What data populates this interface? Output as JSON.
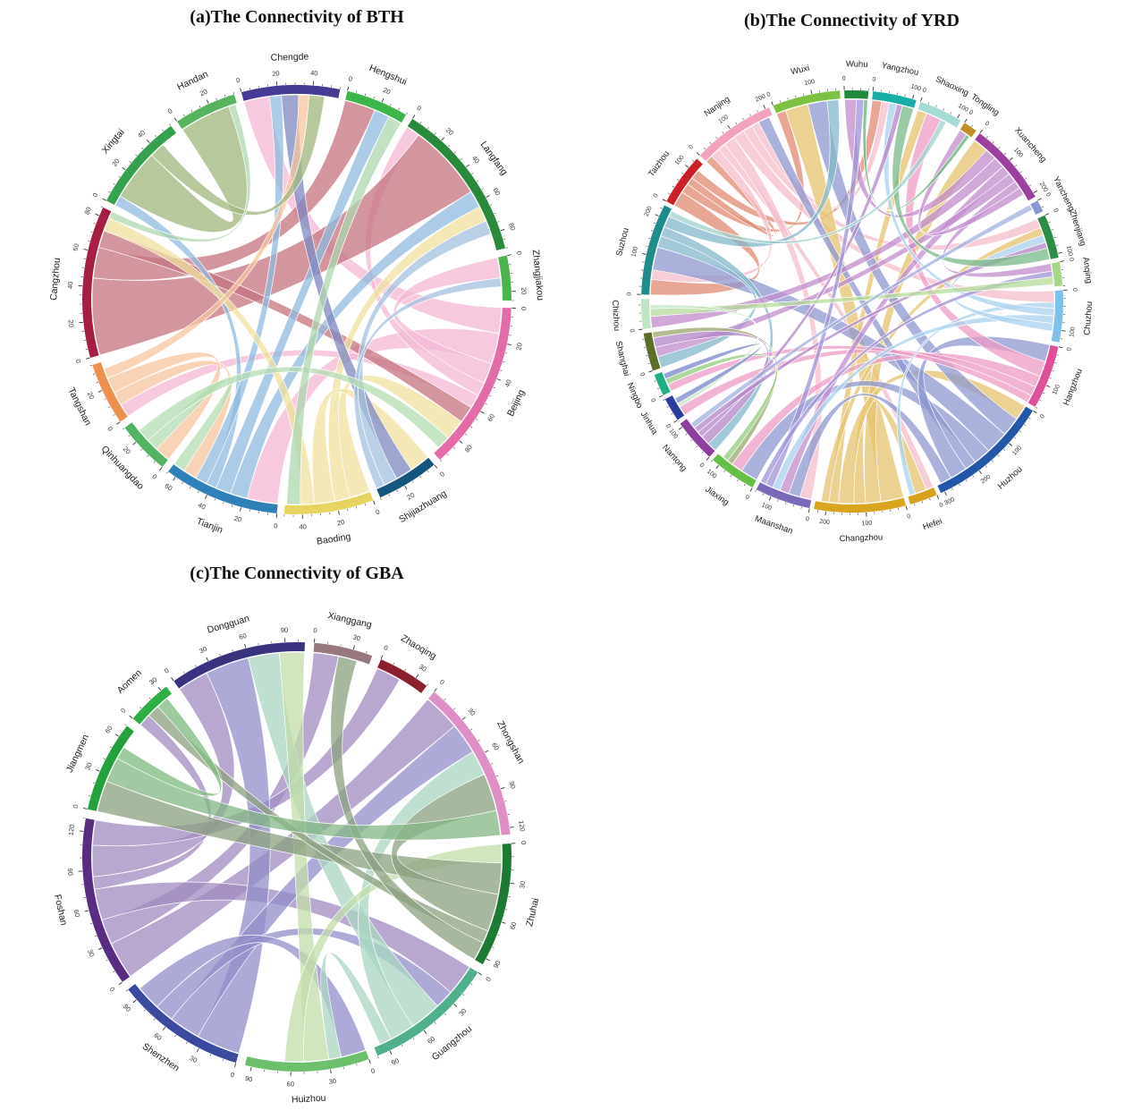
{
  "page": {
    "background": "#ffffff"
  },
  "chart_data": [
    {
      "type": "chord",
      "id": "bth",
      "title": "(a)The Connectivity of BTH",
      "region": "BTH",
      "axis": {
        "tick_major": 20,
        "tick_minor": 5
      },
      "sectors": [
        {
          "name": "Chengde",
          "total": 55,
          "color": "#453a94"
        },
        {
          "name": "Hengshui",
          "total": 35,
          "color": "#3cb54a"
        },
        {
          "name": "Langfang",
          "total": 90,
          "color": "#2a8a3c"
        },
        {
          "name": "Zhangjiakou",
          "total": 25,
          "color": "#49b54f"
        },
        {
          "name": "Beijing",
          "total": 95,
          "color": "#e26ba8"
        },
        {
          "name": "Shijiazhuang",
          "total": 35,
          "color": "#15567e"
        },
        {
          "name": "Baoding",
          "total": 50,
          "color": "#e7d35f"
        },
        {
          "name": "Tianjin",
          "total": 65,
          "color": "#2f7fb9"
        },
        {
          "name": "Qinhuangdao",
          "total": 30,
          "color": "#52b463"
        },
        {
          "name": "Tangshan",
          "total": 35,
          "color": "#ee8f4e"
        },
        {
          "name": "Cangzhou",
          "total": 85,
          "color": "#a51e44"
        },
        {
          "name": "Xingtai",
          "total": 55,
          "color": "#35a04e"
        },
        {
          "name": "Handan",
          "total": 35,
          "color": "#57b35e"
        }
      ],
      "chords": [
        {
          "from": "Beijing",
          "to": "Chengde",
          "value": 15,
          "color": "#f3b7d3"
        },
        {
          "from": "Beijing",
          "to": "Tianjin",
          "value": 18,
          "color": "#f3b7d3"
        },
        {
          "from": "Beijing",
          "to": "Zhangjiakou",
          "value": 12,
          "color": "#f3b7d3"
        },
        {
          "from": "Beijing",
          "to": "Langfang",
          "value": 8,
          "color": "#f3b7d3"
        },
        {
          "from": "Beijing",
          "to": "Tangshan",
          "value": 8,
          "color": "#f3b7d3"
        },
        {
          "from": "Cangzhou",
          "to": "Langfang",
          "value": 45,
          "color": "#c4737f"
        },
        {
          "from": "Cangzhou",
          "to": "Hengshui",
          "value": 18,
          "color": "#c4737f"
        },
        {
          "from": "Cangzhou",
          "to": "Beijing",
          "value": 10,
          "color": "#c4737f"
        },
        {
          "from": "Tianjin",
          "to": "Langfang",
          "value": 10,
          "color": "#8fb9de"
        },
        {
          "from": "Tianjin",
          "to": "Hengshui",
          "value": 9,
          "color": "#8fb9de"
        },
        {
          "from": "Tianjin",
          "to": "Xingtai",
          "value": 6,
          "color": "#8fb9de"
        },
        {
          "from": "Tianjin",
          "to": "Chengde",
          "value": 7,
          "color": "#8fb9de"
        },
        {
          "from": "Baoding",
          "to": "Beijing",
          "value": 12,
          "color": "#efe09e"
        },
        {
          "from": "Baoding",
          "to": "Langfang",
          "value": 9,
          "color": "#efe09e"
        },
        {
          "from": "Baoding",
          "to": "Shijiazhuang",
          "value": 12,
          "color": "#efe09e"
        },
        {
          "from": "Baoding",
          "to": "Cangzhou",
          "value": 8,
          "color": "#efe09e"
        },
        {
          "from": "Shijiazhuang",
          "to": "Chengde",
          "value": 10,
          "color": "#7e88c0"
        },
        {
          "from": "Shijiazhuang",
          "to": "Langfang",
          "value": 8,
          "color": "#a3c0de"
        },
        {
          "from": "Shijiazhuang",
          "to": "Zhangjiakou",
          "value": 5,
          "color": "#a3c0de"
        },
        {
          "from": "Tangshan",
          "to": "Tianjin",
          "value": 8,
          "color": "#f6c49c"
        },
        {
          "from": "Tangshan",
          "to": "Qinhuangdao",
          "value": 9,
          "color": "#f6c49c"
        },
        {
          "from": "Tangshan",
          "to": "Chengde",
          "value": 6,
          "color": "#f6c49c"
        },
        {
          "from": "Qinhuangdao",
          "to": "Tianjin",
          "value": 7,
          "color": "#b2dcb2"
        },
        {
          "from": "Qinhuangdao",
          "to": "Beijing",
          "value": 8,
          "color": "#b2dcb2"
        },
        {
          "from": "Xingtai",
          "to": "Handan",
          "value": 30,
          "color": "#a0b57c"
        },
        {
          "from": "Xingtai",
          "to": "Chengde",
          "value": 9,
          "color": "#a0b57c"
        },
        {
          "from": "Handan",
          "to": "Cangzhou",
          "value": 4,
          "color": "#aed6ae"
        },
        {
          "from": "Hengshui",
          "to": "Baoding",
          "value": 8,
          "color": "#aed6ae"
        }
      ]
    },
    {
      "type": "chord",
      "id": "yrd",
      "title": "(b)The Connectivity of YRD",
      "region": "YRD",
      "axis": {
        "tick_major": 100,
        "tick_minor": 20
      },
      "sectors": [
        {
          "name": "Wuxi",
          "total": 170,
          "color": "#7dc142"
        },
        {
          "name": "Wuhu",
          "total": 60,
          "color": "#208b3d"
        },
        {
          "name": "Yangzhou",
          "total": 110,
          "color": "#16aea6"
        },
        {
          "name": "Shaoxing",
          "total": 110,
          "color": "#a5dbd4"
        },
        {
          "name": "Tongling",
          "total": 35,
          "color": "#bf8f27"
        },
        {
          "name": "Xuancheng",
          "total": 210,
          "color": "#9c3f9f"
        },
        {
          "name": "Yancheng",
          "total": 30,
          "color": "#8896d2"
        },
        {
          "name": "Zhenjiang",
          "total": 110,
          "color": "#2d8c45"
        },
        {
          "name": "Anqing",
          "total": 60,
          "color": "#a6d788"
        },
        {
          "name": "Chuzhou",
          "total": 130,
          "color": "#7fc0e8"
        },
        {
          "name": "Hangzhou",
          "total": 160,
          "color": "#e04f9a"
        },
        {
          "name": "Huzhou",
          "total": 310,
          "color": "#2256a8"
        },
        {
          "name": "Hefei",
          "total": 70,
          "color": "#d6a11d"
        },
        {
          "name": "Changzhou",
          "total": 230,
          "color": "#d9a51f"
        },
        {
          "name": "Maanshan",
          "total": 140,
          "color": "#7a68b8"
        },
        {
          "name": "Jiaxing",
          "total": 120,
          "color": "#67bf4a"
        },
        {
          "name": "Nantong",
          "total": 110,
          "color": "#8d3f9d"
        },
        {
          "name": "Jinhua",
          "total": 60,
          "color": "#2b3d9b"
        },
        {
          "name": "Ningbo",
          "total": 55,
          "color": "#1fae85"
        },
        {
          "name": "Shanghai",
          "total": 95,
          "color": "#5c6e29"
        },
        {
          "name": "Chizhou",
          "total": 75,
          "color": "#bfe5c4"
        },
        {
          "name": "Suzhou",
          "total": 230,
          "color": "#1f8b8b"
        },
        {
          "name": "Taizhou",
          "total": 130,
          "color": "#cc2026"
        },
        {
          "name": "Nanjing",
          "total": 210,
          "color": "#f2a3bb"
        }
      ],
      "chords": [
        {
          "from": "Taizhou",
          "to": "Suzhou",
          "value": 40,
          "color": "#e08a70"
        },
        {
          "from": "Taizhou",
          "to": "Wuxi",
          "value": 25,
          "color": "#e08a70"
        },
        {
          "from": "Taizhou",
          "to": "Nanjing",
          "value": 20,
          "color": "#e08a70"
        },
        {
          "from": "Taizhou",
          "to": "Yangzhou",
          "value": 25,
          "color": "#e08a70"
        },
        {
          "from": "Nanjing",
          "to": "Suzhou",
          "value": 25,
          "color": "#f4bccb"
        },
        {
          "from": "Nanjing",
          "to": "Hefei",
          "value": 20,
          "color": "#f4bccb"
        },
        {
          "from": "Nanjing",
          "to": "Maanshan",
          "value": 30,
          "color": "#f4bccb"
        },
        {
          "from": "Nanjing",
          "to": "Chuzhou",
          "value": 30,
          "color": "#f4bccb"
        },
        {
          "from": "Nanjing",
          "to": "Zhenjiang",
          "value": 25,
          "color": "#f4bccb"
        },
        {
          "from": "Nanjing",
          "to": "Yangzhou",
          "value": 20,
          "color": "#f4bccb"
        },
        {
          "from": "Changzhou",
          "to": "Wuxi",
          "value": 60,
          "color": "#e6c36e"
        },
        {
          "from": "Changzhou",
          "to": "Xuancheng",
          "value": 40,
          "color": "#e6c36e"
        },
        {
          "from": "Changzhou",
          "to": "Hefei",
          "value": 30,
          "color": "#e6c36e"
        },
        {
          "from": "Changzhou",
          "to": "Huzhou",
          "value": 40,
          "color": "#e6c36e"
        },
        {
          "from": "Changzhou",
          "to": "Shaoxing",
          "value": 25,
          "color": "#e6c36e"
        },
        {
          "from": "Changzhou",
          "to": "Zhenjiang",
          "value": 20,
          "color": "#e6c36e"
        },
        {
          "from": "Huzhou",
          "to": "Wuxi",
          "value": 50,
          "color": "#8d97cf"
        },
        {
          "from": "Huzhou",
          "to": "Suzhou",
          "value": 60,
          "color": "#8d97cf"
        },
        {
          "from": "Huzhou",
          "to": "Jiaxing",
          "value": 45,
          "color": "#8d97cf"
        },
        {
          "from": "Huzhou",
          "to": "Nanjing",
          "value": 30,
          "color": "#8d97cf"
        },
        {
          "from": "Huzhou",
          "to": "Hangzhou",
          "value": 45,
          "color": "#8d97cf"
        },
        {
          "from": "Huzhou",
          "to": "Maanshan",
          "value": 30,
          "color": "#8d97cf"
        },
        {
          "from": "Suzhou",
          "to": "Shanghai",
          "value": 30,
          "color": "#82b7c9"
        },
        {
          "from": "Suzhou",
          "to": "Nantong",
          "value": 25,
          "color": "#82b7c9"
        },
        {
          "from": "Suzhou",
          "to": "Wuxi",
          "value": 30,
          "color": "#82b7c9"
        },
        {
          "from": "Hangzhou",
          "to": "Shaoxing",
          "value": 40,
          "color": "#ec9cc4"
        },
        {
          "from": "Hangzhou",
          "to": "Jiaxing",
          "value": 30,
          "color": "#ec9cc4"
        },
        {
          "from": "Hangzhou",
          "to": "Jinhua",
          "value": 25,
          "color": "#ec9cc4"
        },
        {
          "from": "Hangzhou",
          "to": "Ningbo",
          "value": 20,
          "color": "#ec9cc4"
        },
        {
          "from": "Xuancheng",
          "to": "Wuhu",
          "value": 30,
          "color": "#c08ccc"
        },
        {
          "from": "Xuancheng",
          "to": "Chizhou",
          "value": 30,
          "color": "#c08ccc"
        },
        {
          "from": "Xuancheng",
          "to": "Maanshan",
          "value": 25,
          "color": "#c08ccc"
        },
        {
          "from": "Xuancheng",
          "to": "Shanghai",
          "value": 25,
          "color": "#c08ccc"
        },
        {
          "from": "Xuancheng",
          "to": "Anqing",
          "value": 20,
          "color": "#c08ccc"
        },
        {
          "from": "Xuancheng",
          "to": "Tongling",
          "value": 20,
          "color": "#c08ccc"
        },
        {
          "from": "Chuzhou",
          "to": "Hefei",
          "value": 15,
          "color": "#a9d2ee"
        },
        {
          "from": "Chuzhou",
          "to": "Yangzhou",
          "value": 20,
          "color": "#a9d2ee"
        },
        {
          "from": "Chuzhou",
          "to": "Maanshan",
          "value": 20,
          "color": "#a9d2ee"
        },
        {
          "from": "Chuzhou",
          "to": "Zhenjiang",
          "value": 20,
          "color": "#a9d2ee"
        },
        {
          "from": "Nantong",
          "to": "Shanghai",
          "value": 25,
          "color": "#b184c7"
        },
        {
          "from": "Nantong",
          "to": "Yangzhou",
          "value": 15,
          "color": "#b184c7"
        },
        {
          "from": "Nantong",
          "to": "Zhenjiang",
          "value": 15,
          "color": "#b184c7"
        },
        {
          "from": "Shanghai",
          "to": "Jiaxing",
          "value": 15,
          "color": "#99a56b"
        },
        {
          "from": "Jiaxing",
          "to": "Ningbo",
          "value": 15,
          "color": "#90cc7a"
        },
        {
          "from": "Maanshan",
          "to": "Wuhu",
          "value": 20,
          "color": "#9e93d6"
        },
        {
          "from": "Maanshan",
          "to": "Anqing",
          "value": 15,
          "color": "#9e93d6"
        },
        {
          "from": "Wuhu",
          "to": "Tongling",
          "value": 10,
          "color": "#63b377"
        },
        {
          "from": "Anqing",
          "to": "Chizhou",
          "value": 20,
          "color": "#b4dc9a"
        },
        {
          "from": "Chizhou",
          "to": "Jinhua",
          "value": 10,
          "color": "#c4e4c0"
        },
        {
          "from": "Jinhua",
          "to": "Ningbo",
          "value": 15,
          "color": "#7787cc"
        },
        {
          "from": "Zhenjiang",
          "to": "Yangzhou",
          "value": 30,
          "color": "#7ab88a"
        },
        {
          "from": "Shaoxing",
          "to": "Suzhou",
          "value": 15,
          "color": "#9fd2cc"
        },
        {
          "from": "Yancheng",
          "to": "Nantong",
          "value": 15,
          "color": "#9fb0de"
        }
      ]
    },
    {
      "type": "chord",
      "id": "gba",
      "title": "(c)The Connectivity of GBA",
      "region": "GBA",
      "axis": {
        "tick_major": 30,
        "tick_minor": 10
      },
      "sectors": [
        {
          "name": "Dongguan",
          "total": 105,
          "color": "#39337f"
        },
        {
          "name": "Xianggang",
          "total": 45,
          "color": "#97787f"
        },
        {
          "name": "Zhaoqing",
          "total": 40,
          "color": "#8c1f2e"
        },
        {
          "name": "Zhongshan",
          "total": 125,
          "color": "#de8fc5"
        },
        {
          "name": "Zhuhai",
          "total": 95,
          "color": "#1e7a33"
        },
        {
          "name": "Guangzhou",
          "total": 100,
          "color": "#4fb08b"
        },
        {
          "name": "Huizhou",
          "total": 95,
          "color": "#6cbf6b"
        },
        {
          "name": "Shenzhen",
          "total": 100,
          "color": "#3a4a9f"
        },
        {
          "name": "Foshan",
          "total": 130,
          "color": "#582c80"
        },
        {
          "name": "Jiangmen",
          "total": 70,
          "color": "#23a13b"
        },
        {
          "name": "Aomen",
          "total": 35,
          "color": "#2fae45"
        }
      ],
      "chords": [
        {
          "from": "Foshan",
          "to": "Zhongshan",
          "value": 30,
          "color": "#a08bbf"
        },
        {
          "from": "Foshan",
          "to": "Xianggang",
          "value": 20,
          "color": "#a08bbf"
        },
        {
          "from": "Foshan",
          "to": "Guangzhou",
          "value": 25,
          "color": "#a08bbf"
        },
        {
          "from": "Foshan",
          "to": "Aomen",
          "value": 10,
          "color": "#a08bbf"
        },
        {
          "from": "Foshan",
          "to": "Dongguan",
          "value": 25,
          "color": "#a08bbf"
        },
        {
          "from": "Foshan",
          "to": "Zhaoqing",
          "value": 20,
          "color": "#a08bbf"
        },
        {
          "from": "Shenzhen",
          "to": "Dongguan",
          "value": 35,
          "color": "#918dca"
        },
        {
          "from": "Shenzhen",
          "to": "Zhongshan",
          "value": 25,
          "color": "#918dca"
        },
        {
          "from": "Shenzhen",
          "to": "Guangzhou",
          "value": 15,
          "color": "#918dca"
        },
        {
          "from": "Shenzhen",
          "to": "Huizhou",
          "value": 20,
          "color": "#918dca"
        },
        {
          "from": "Guangzhou",
          "to": "Dongguan",
          "value": 25,
          "color": "#a9d6c1"
        },
        {
          "from": "Guangzhou",
          "to": "Zhongshan",
          "value": 20,
          "color": "#a9d6c1"
        },
        {
          "from": "Guangzhou",
          "to": "Huizhou",
          "value": 10,
          "color": "#a9d6c1"
        },
        {
          "from": "Huizhou",
          "to": "Dongguan",
          "value": 20,
          "color": "#c1dcaa"
        },
        {
          "from": "Huizhou",
          "to": "Zhuhai",
          "value": 15,
          "color": "#c1dcaa"
        },
        {
          "from": "Zhuhai",
          "to": "Jiangmen",
          "value": 25,
          "color": "#8ba07f"
        },
        {
          "from": "Zhuhai",
          "to": "Zhongshan",
          "value": 30,
          "color": "#8ba07f"
        },
        {
          "from": "Zhuhai",
          "to": "Aomen",
          "value": 10,
          "color": "#8ba07f"
        },
        {
          "from": "Zhuhai",
          "to": "Xianggang",
          "value": 15,
          "color": "#8ba07f"
        },
        {
          "from": "Zhongshan",
          "to": "Jiangmen",
          "value": 20,
          "color": "#84b585"
        },
        {
          "from": "Jiangmen",
          "to": "Aomen",
          "value": 10,
          "color": "#7dba7d"
        }
      ]
    }
  ]
}
